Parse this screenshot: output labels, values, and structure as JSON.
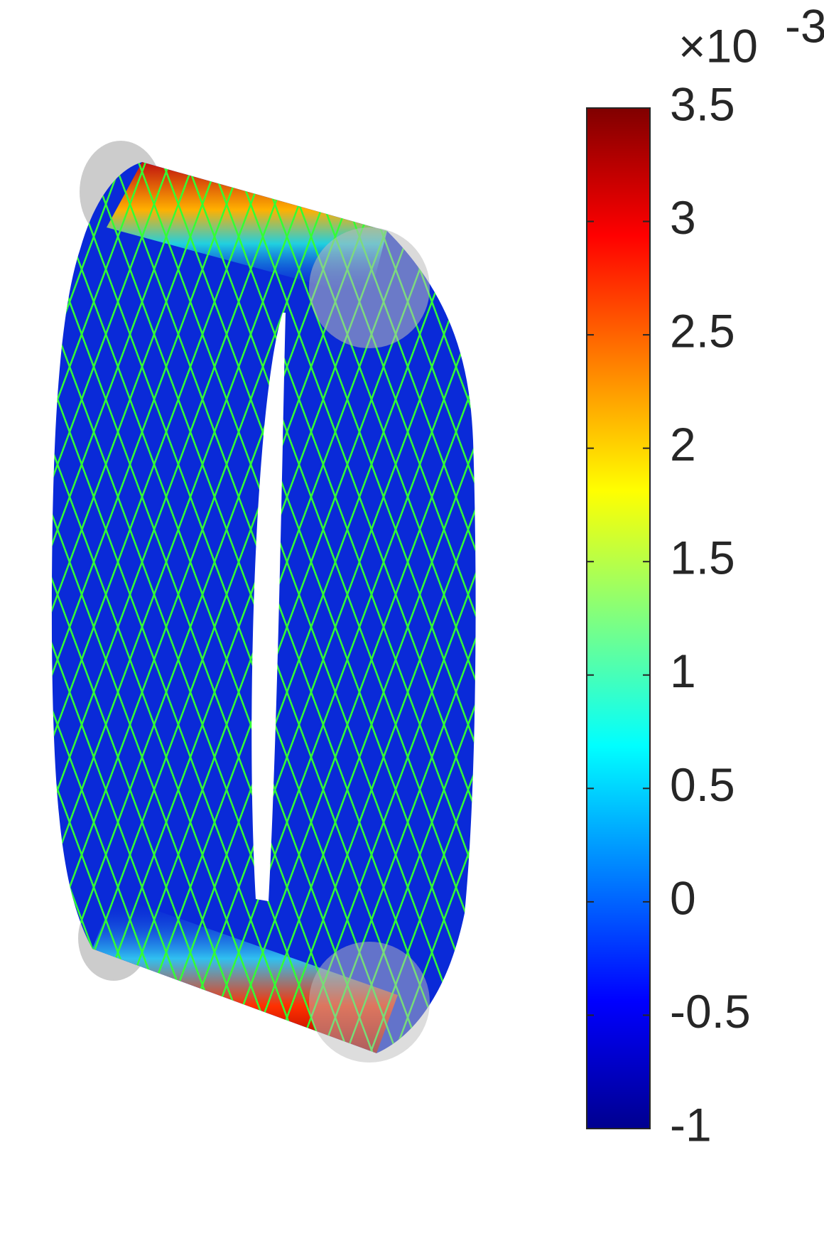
{
  "chart_data": {
    "type": "surface",
    "colorbar": {
      "clim": [
        -1,
        3.5
      ],
      "ticks": [
        -1,
        -0.5,
        0,
        0.5,
        1,
        1.5,
        2,
        2.5,
        3,
        3.5
      ],
      "scale_factor": "×10",
      "scale_exponent": "-3"
    },
    "mesh_color": "#33ff33"
  }
}
